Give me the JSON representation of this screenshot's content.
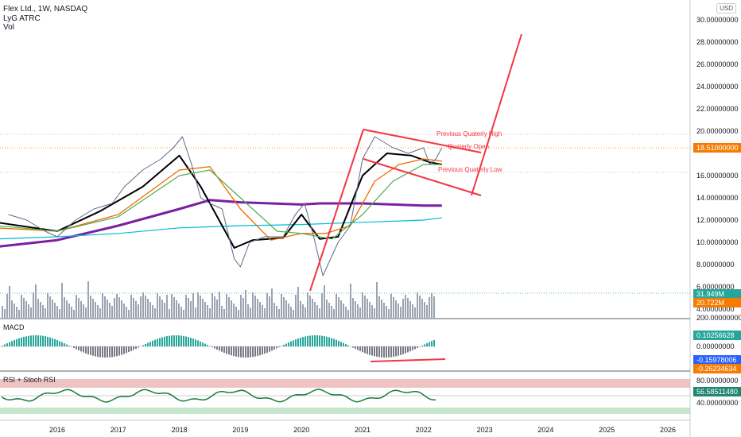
{
  "header": {
    "symbol_line": "Flex Ltd., 1W, NASDAQ",
    "indicator_1": "LyG ATRC",
    "indicator_2": "Vol"
  },
  "currency_label": "USD",
  "macd_label": "MACD",
  "rsi_label": "RSI + Stoch RSI",
  "price_axis_labels": [
    "30.00000000",
    "28.00000000",
    "26.00000000",
    "24.00000000",
    "22.00000000",
    "20.00000000",
    "16.00000000",
    "14.00000000",
    "12.00000000",
    "10.00000000",
    "8.00000000",
    "6.00000000",
    "4.00000000",
    "200.00000000"
  ],
  "macd_axis_labels": [
    "0.00000000"
  ],
  "rsi_axis_labels": [
    "80.00000000",
    "40.00000000"
  ],
  "tags": {
    "last_price": "18.51000000",
    "vol_1": "31.949M",
    "vol_2": "20.722M",
    "macd_1": "0.10256628",
    "macd_2": "-0.15978006",
    "macd_3": "-0.26234634",
    "rsi": "56.58511480"
  },
  "colors": {
    "price_tag": "#f57c00",
    "vol_tag_1": "#26a69a",
    "vol_tag_2": "#f57c00",
    "macd_tag_1": "#26a69a",
    "macd_tag_2": "#2962ff",
    "macd_tag_3": "#f57c00",
    "rsi_tag": "#22876f",
    "drawing": "#f23645",
    "ma_purple": "#7b1fa2",
    "ma_cyan": "#00bcd4",
    "ma_black": "#000000",
    "ma_orange": "#ef6c00",
    "ma_green": "#4caf50",
    "candles": "#5b6b8a"
  },
  "annotations": {
    "prev_q_high": "Previous Quaterly High",
    "q_open": "Quaterly Open",
    "prev_q_low": "Previous Quaterly Low"
  },
  "chart_data": {
    "type": "line",
    "title": "Flex Ltd., 1W, NASDAQ",
    "x_ticks": [
      "2016",
      "2017",
      "2018",
      "2019",
      "2020",
      "2021",
      "2022",
      "2023",
      "2024",
      "2025",
      "2026"
    ],
    "price_series": {
      "name": "Flex Ltd.",
      "x": [
        2015.2,
        2015.5,
        2015.8,
        2016.0,
        2016.3,
        2016.6,
        2016.9,
        2017.1,
        2017.4,
        2017.7,
        2017.9,
        2018.05,
        2018.2,
        2018.35,
        2018.5,
        2018.7,
        2018.9,
        2019.0,
        2019.15,
        2019.4,
        2019.7,
        2019.9,
        2020.05,
        2020.2,
        2020.35,
        2020.6,
        2020.8,
        2021.0,
        2021.2,
        2021.5,
        2021.75,
        2022.0,
        2022.1,
        2022.2,
        2022.3
      ],
      "y": [
        12.5,
        12.0,
        11.0,
        10.5,
        12.0,
        13.0,
        13.5,
        15.0,
        16.5,
        17.5,
        18.5,
        19.5,
        17.0,
        14.0,
        13.5,
        13.0,
        8.5,
        7.8,
        10.0,
        10.5,
        10.5,
        12.5,
        13.5,
        10.5,
        7.0,
        10.0,
        11.5,
        17.5,
        19.5,
        18.5,
        18.0,
        18.5,
        17.0,
        17.5,
        18.5
      ]
    },
    "moving_averages": [
      {
        "x": [
          2015.0,
          2016.0,
          2017.0,
          2018.0,
          2018.5,
          2019.0,
          2020.0,
          2020.3,
          2021.0,
          2022.0,
          2022.3
        ],
        "y": [
          9.6,
          10.2,
          11.5,
          13.0,
          13.8,
          13.6,
          13.4,
          13.5,
          13.5,
          13.3,
          13.3
        ]
      },
      {
        "x": [
          2015.0,
          2016.0,
          2017.0,
          2018.0,
          2019.0,
          2020.0,
          2021.0,
          2022.0,
          2022.3
        ],
        "y": [
          10.3,
          10.5,
          10.8,
          11.3,
          11.5,
          11.6,
          11.8,
          12.0,
          12.2
        ]
      },
      {
        "x": [
          2015.0,
          2016.0,
          2016.7,
          2017.4,
          2018.0,
          2018.35,
          2018.9,
          2019.2,
          2019.7,
          2020.0,
          2020.3,
          2020.6,
          2021.0,
          2021.4,
          2021.8,
          2022.1,
          2022.3
        ],
        "y": [
          11.8,
          11.0,
          12.8,
          15.0,
          17.8,
          15.0,
          9.5,
          10.2,
          10.4,
          12.5,
          10.3,
          10.5,
          16.0,
          18.0,
          17.8,
          17.2,
          17.0
        ]
      },
      {
        "x": [
          2015.0,
          2016.0,
          2017.0,
          2018.0,
          2018.5,
          2019.0,
          2019.5,
          2020.0,
          2020.4,
          2020.8,
          2021.2,
          2021.6,
          2022.0,
          2022.3
        ],
        "y": [
          11.3,
          11.0,
          12.5,
          16.5,
          16.8,
          13.0,
          10.2,
          10.8,
          10.8,
          11.5,
          15.5,
          17.0,
          17.5,
          17.3
        ]
      },
      {
        "x": [
          2015.0,
          2016.0,
          2017.0,
          2018.0,
          2018.5,
          2019.0,
          2019.6,
          2020.0,
          2020.5,
          2021.0,
          2021.5,
          2022.0,
          2022.3
        ],
        "y": [
          11.5,
          11.0,
          12.3,
          16.0,
          16.5,
          14.0,
          11.0,
          10.8,
          10.3,
          12.5,
          15.5,
          17.0,
          17.0
        ]
      }
    ],
    "ylim": [
      3.0,
      31.0
    ],
    "xlim": [
      2015.1,
      2026.6
    ]
  }
}
